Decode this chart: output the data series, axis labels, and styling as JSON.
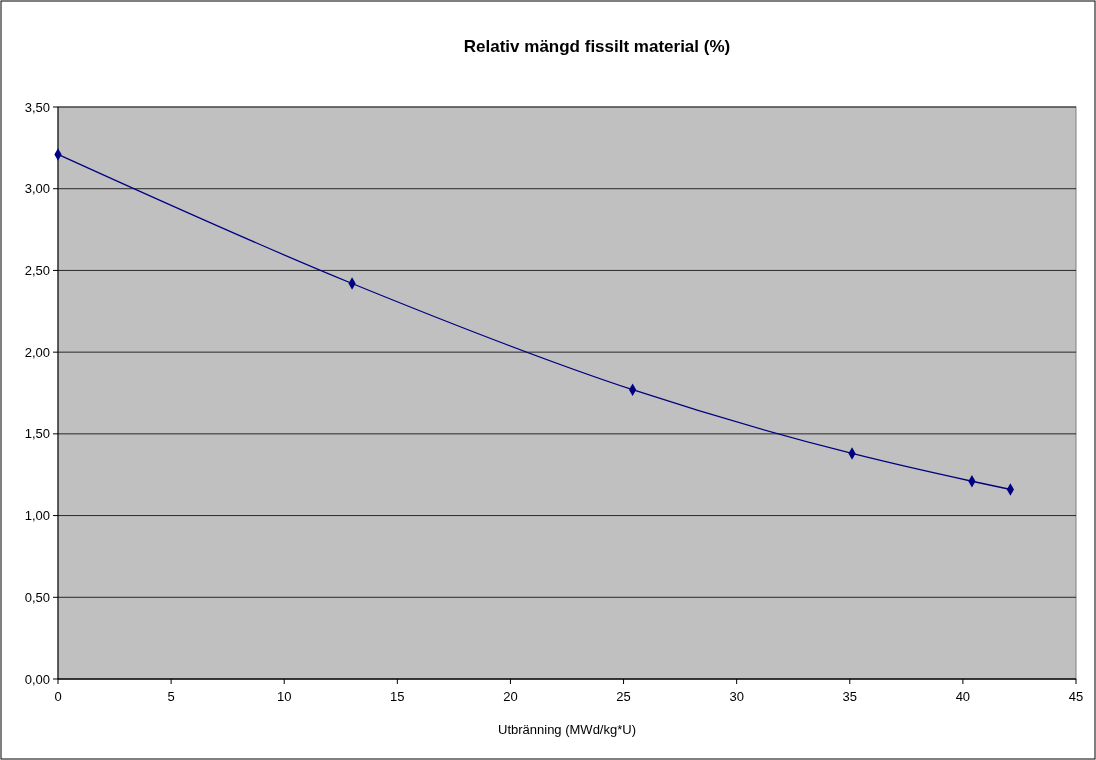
{
  "chart_data": {
    "type": "line",
    "title": "Relativ mängd fissilt material (%)",
    "xlabel": "Utbränning (MWd/kg*U)",
    "x": [
      0,
      13,
      25.4,
      35.1,
      40.4,
      42.1
    ],
    "series": [
      {
        "color": "#000080",
        "values": [
          3.21,
          2.42,
          1.77,
          1.38,
          1.21,
          1.16
        ]
      }
    ],
    "xlim": [
      0,
      45
    ],
    "xticks": [
      0,
      5,
      10,
      15,
      20,
      25,
      30,
      35,
      40,
      45
    ],
    "ylim": [
      0,
      3.5
    ],
    "yticks": [
      {
        "value": 0,
        "label": "0,00"
      },
      {
        "value": 0.5,
        "label": "0,50"
      },
      {
        "value": 1,
        "label": "1,00"
      },
      {
        "value": 1.5,
        "label": "1,50"
      },
      {
        "value": 2,
        "label": "2,00"
      },
      {
        "value": 2.5,
        "label": "2,50"
      },
      {
        "value": 3,
        "label": "3,00"
      },
      {
        "value": 3.5,
        "label": "3,50"
      }
    ],
    "grid": "y",
    "marker": "diamond",
    "line_style": "solid"
  }
}
